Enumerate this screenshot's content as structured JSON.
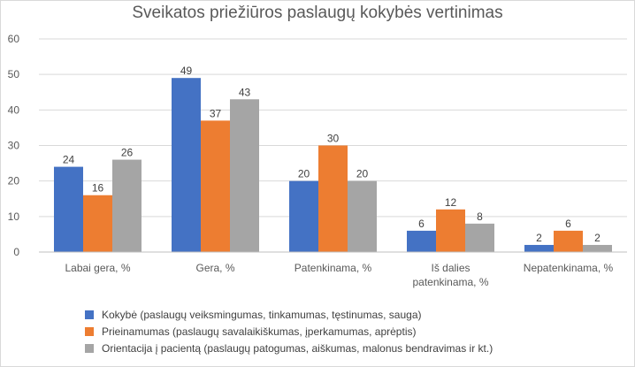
{
  "chart_data": {
    "type": "bar",
    "title": "Sveikatos priežiūros paslaugų kokybės vertinimas",
    "categories": [
      [
        "Labai gera, %"
      ],
      [
        "Gera, %"
      ],
      [
        "Patenkinama, %"
      ],
      [
        "Iš dalies",
        "patenkinama, %"
      ],
      [
        "Nepatenkinama, %"
      ]
    ],
    "series": [
      {
        "name": "Kokybė (paslaugų veiksmingumas, tinkamumas, tęstinumas, sauga)",
        "color": "#4472c4",
        "values": [
          24,
          49,
          20,
          6,
          2
        ]
      },
      {
        "name": "Prieinamumas (paslaugų savalaikiškumas, įperkamumas, aprėptis)",
        "color": "#ed7d31",
        "values": [
          16,
          37,
          30,
          12,
          6
        ]
      },
      {
        "name": "Orientacija į pacientą (paslaugų patogumas, aiškumas, malonus bendravimas ir kt.)",
        "color": "#a5a5a5",
        "values": [
          26,
          43,
          20,
          8,
          2
        ]
      }
    ],
    "ylim": [
      0,
      60
    ],
    "yticks": [
      0,
      10,
      20,
      30,
      40,
      50,
      60
    ],
    "grid": true,
    "legend_position": "bottom-left"
  }
}
